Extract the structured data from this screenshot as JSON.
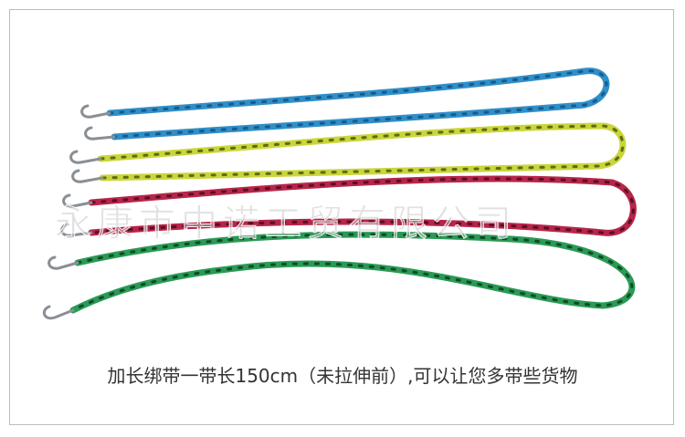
{
  "watermark": "永康市中诺工贸有限公司",
  "caption": "加长绑带一带长150cm（未拉伸前）,可以让您多带些货物"
}
